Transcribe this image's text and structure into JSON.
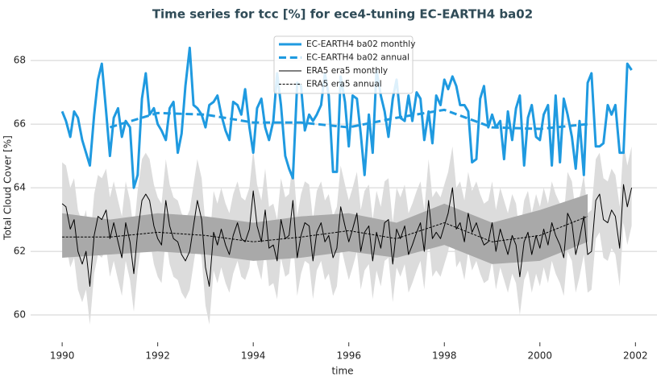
{
  "chart_data": {
    "type": "line",
    "title": "Time series for tcc [%] for ece4-tuning EC-EARTH4 ba02",
    "x_label": "time",
    "y_label": "Total Cloud Cover [%]",
    "xlim": [
      1989.34,
      2002.45
    ],
    "ylim": [
      59.14,
      68.84
    ],
    "xticks": [
      1990,
      1992,
      1994,
      1996,
      1998,
      2000,
      2002
    ],
    "yticks": [
      60,
      62,
      64,
      66,
      68
    ],
    "grid": true,
    "x": [
      1990.0,
      1990.08,
      1990.17,
      1990.25,
      1990.33,
      1990.42,
      1990.5,
      1990.58,
      1990.67,
      1990.75,
      1990.83,
      1990.92,
      1991.0,
      1991.08,
      1991.17,
      1991.25,
      1991.33,
      1991.42,
      1991.5,
      1991.58,
      1991.67,
      1991.75,
      1991.83,
      1991.92,
      1992.0,
      1992.08,
      1992.17,
      1992.25,
      1992.33,
      1992.42,
      1992.5,
      1992.58,
      1992.67,
      1992.75,
      1992.83,
      1992.92,
      1993.0,
      1993.08,
      1993.17,
      1993.25,
      1993.33,
      1993.42,
      1993.5,
      1993.58,
      1993.67,
      1993.75,
      1993.83,
      1993.92,
      1994.0,
      1994.08,
      1994.17,
      1994.25,
      1994.33,
      1994.42,
      1994.5,
      1994.58,
      1994.67,
      1994.75,
      1994.83,
      1994.92,
      1995.0,
      1995.08,
      1995.17,
      1995.25,
      1995.33,
      1995.42,
      1995.5,
      1995.58,
      1995.67,
      1995.75,
      1995.83,
      1995.92,
      1996.0,
      1996.08,
      1996.17,
      1996.25,
      1996.33,
      1996.42,
      1996.5,
      1996.58,
      1996.67,
      1996.75,
      1996.83,
      1996.92,
      1997.0,
      1997.08,
      1997.17,
      1997.25,
      1997.33,
      1997.42,
      1997.5,
      1997.58,
      1997.67,
      1997.75,
      1997.83,
      1997.92,
      1998.0,
      1998.08,
      1998.17,
      1998.25,
      1998.33,
      1998.42,
      1998.5,
      1998.58,
      1998.67,
      1998.75,
      1998.83,
      1998.92,
      1999.0,
      1999.08,
      1999.17,
      1999.25,
      1999.33,
      1999.42,
      1999.5,
      1999.58,
      1999.67,
      1999.75,
      1999.83,
      1999.92,
      2000.0,
      2000.08,
      2000.17,
      2000.25,
      2000.33,
      2000.42,
      2000.5,
      2000.58,
      2000.67,
      2000.75,
      2000.83,
      2000.92,
      2001.0,
      2001.08,
      2001.17,
      2001.25,
      2001.33,
      2001.42,
      2001.5,
      2001.58,
      2001.67,
      2001.75,
      2001.83,
      2001.92
    ],
    "series": [
      {
        "name": "EC-EARTH4 ba02 monthly",
        "color": "#1f9ae0",
        "width": 3,
        "dashed": false,
        "values": [
          66.4,
          66.1,
          65.6,
          66.4,
          66.2,
          65.5,
          65.1,
          64.7,
          66.3,
          67.4,
          67.9,
          66.4,
          65.0,
          66.2,
          66.5,
          65.6,
          66.1,
          65.9,
          64.0,
          64.4,
          66.8,
          67.6,
          66.3,
          66.5,
          66.0,
          65.8,
          65.5,
          66.5,
          66.7,
          65.1,
          65.7,
          67.2,
          68.4,
          66.6,
          66.5,
          66.3,
          65.9,
          66.6,
          66.7,
          66.9,
          66.3,
          65.8,
          65.5,
          66.7,
          66.6,
          66.3,
          67.1,
          65.9,
          65.1,
          66.5,
          66.8,
          65.9,
          65.5,
          66.1,
          67.6,
          66.6,
          65.0,
          64.6,
          64.3,
          67.3,
          67.2,
          65.8,
          66.3,
          66.1,
          66.3,
          66.6,
          67.6,
          66.9,
          64.5,
          64.5,
          67.5,
          66.7,
          65.3,
          66.9,
          66.8,
          65.7,
          64.4,
          66.3,
          65.1,
          67.7,
          66.9,
          66.4,
          65.6,
          66.8,
          67.4,
          66.2,
          66.1,
          66.9,
          66.1,
          67.0,
          66.8,
          65.5,
          66.4,
          65.4,
          66.9,
          66.6,
          67.4,
          67.1,
          67.5,
          67.2,
          66.6,
          66.6,
          66.4,
          64.8,
          64.9,
          66.8,
          67.2,
          65.9,
          66.3,
          65.9,
          66.1,
          64.9,
          66.4,
          65.5,
          66.5,
          66.9,
          64.7,
          66.2,
          66.6,
          65.6,
          65.5,
          66.3,
          66.6,
          64.7,
          66.9,
          64.8,
          66.8,
          66.3,
          65.6,
          64.6,
          66.1,
          64.4,
          67.3,
          67.6,
          65.3,
          65.3,
          65.4,
          66.6,
          66.3,
          66.6,
          65.1,
          65.1,
          67.9,
          67.7
        ]
      },
      {
        "name": "EC-EARTH4 ba02 annual",
        "color": "#1f9ae0",
        "width": 3,
        "dashed": true,
        "x": [
          1991,
          1992,
          1993,
          1994,
          1995,
          1996,
          1997,
          1998,
          1999,
          2000,
          2001
        ],
        "values": [
          65.9,
          66.35,
          66.3,
          66.05,
          66.05,
          65.9,
          66.2,
          66.45,
          65.9,
          65.85,
          66.0
        ]
      },
      {
        "name": "ERA5 era5 monthly",
        "color": "#000000",
        "width": 1,
        "dashed": false,
        "band_color": "#dcdcdc",
        "values": [
          63.5,
          63.4,
          62.7,
          63.0,
          62.0,
          61.6,
          62.0,
          60.9,
          62.5,
          63.1,
          63.0,
          63.3,
          62.4,
          62.9,
          62.3,
          61.8,
          62.9,
          62.3,
          61.3,
          62.6,
          63.6,
          63.8,
          63.6,
          62.8,
          62.4,
          62.2,
          63.6,
          62.8,
          62.4,
          62.3,
          61.9,
          61.7,
          62.0,
          62.8,
          63.6,
          63.0,
          61.5,
          60.9,
          62.6,
          62.2,
          62.7,
          62.2,
          61.9,
          62.5,
          62.9,
          62.4,
          62.3,
          62.7,
          63.9,
          62.8,
          62.3,
          63.3,
          62.1,
          62.2,
          61.7,
          63.0,
          62.4,
          62.5,
          63.6,
          61.8,
          62.5,
          62.9,
          62.8,
          61.7,
          62.6,
          62.9,
          62.3,
          62.5,
          61.8,
          62.1,
          63.4,
          62.8,
          62.3,
          62.7,
          63.2,
          62.0,
          62.6,
          62.8,
          61.7,
          62.6,
          62.1,
          62.9,
          63.0,
          61.6,
          62.7,
          62.4,
          62.8,
          61.9,
          62.2,
          62.6,
          62.9,
          62.0,
          63.6,
          62.4,
          62.6,
          62.4,
          62.8,
          63.2,
          64.0,
          62.7,
          62.9,
          62.3,
          63.2,
          62.6,
          62.9,
          62.5,
          62.2,
          62.3,
          62.9,
          62.0,
          62.7,
          62.3,
          61.9,
          62.5,
          62.2,
          61.2,
          62.3,
          62.6,
          61.9,
          62.5,
          62.1,
          62.7,
          62.2,
          62.9,
          62.5,
          62.2,
          61.8,
          63.2,
          62.9,
          61.9,
          62.4,
          63.1,
          61.9,
          62.0,
          63.6,
          63.8,
          63.0,
          62.9,
          63.3,
          63.1,
          62.1,
          64.1,
          63.4,
          64.0
        ],
        "band_lower": [
          62.3,
          62.2,
          61.5,
          61.8,
          60.8,
          60.4,
          60.8,
          59.7,
          61.3,
          61.9,
          61.8,
          62.1,
          61.2,
          61.7,
          61.1,
          60.6,
          61.7,
          61.1,
          60.1,
          61.4,
          62.4,
          62.6,
          62.4,
          61.6,
          61.2,
          61.0,
          62.4,
          61.6,
          61.2,
          61.1,
          60.7,
          60.5,
          60.8,
          61.6,
          62.4,
          61.8,
          60.3,
          59.7,
          61.4,
          61.0,
          61.5,
          61.0,
          60.7,
          61.3,
          61.7,
          61.2,
          61.1,
          61.5,
          62.7,
          61.6,
          61.1,
          62.1,
          60.9,
          61.0,
          60.5,
          61.8,
          61.2,
          61.3,
          62.4,
          60.6,
          61.3,
          61.7,
          61.6,
          60.5,
          61.4,
          61.7,
          61.1,
          61.3,
          60.6,
          60.9,
          62.2,
          61.6,
          61.1,
          61.5,
          62.0,
          60.8,
          61.4,
          61.6,
          60.5,
          61.4,
          60.9,
          61.7,
          61.8,
          60.4,
          61.5,
          61.2,
          61.6,
          60.7,
          61.0,
          61.4,
          61.7,
          60.8,
          62.4,
          61.2,
          61.4,
          61.2,
          61.6,
          62.0,
          62.8,
          61.5,
          61.7,
          61.1,
          62.0,
          61.4,
          61.7,
          61.3,
          61.0,
          61.1,
          61.7,
          60.8,
          61.5,
          61.1,
          60.7,
          61.3,
          61.0,
          60.0,
          61.1,
          61.4,
          60.7,
          61.3,
          60.9,
          61.5,
          61.0,
          61.7,
          61.3,
          61.0,
          60.6,
          62.0,
          61.7,
          60.7,
          61.2,
          61.9,
          60.7,
          60.8,
          62.4,
          62.6,
          61.8,
          61.7,
          62.1,
          61.9,
          60.9,
          62.9,
          62.2,
          62.8
        ],
        "band_upper": [
          64.8,
          64.7,
          64.0,
          64.3,
          63.3,
          62.9,
          63.3,
          62.2,
          63.8,
          64.4,
          64.3,
          64.6,
          63.7,
          64.2,
          63.6,
          63.1,
          64.2,
          63.6,
          62.6,
          63.9,
          64.9,
          65.1,
          64.9,
          64.1,
          63.7,
          63.5,
          64.9,
          64.1,
          63.7,
          63.6,
          63.2,
          63.0,
          63.3,
          64.1,
          64.9,
          64.3,
          62.8,
          62.2,
          63.9,
          63.5,
          64.0,
          63.5,
          63.2,
          63.8,
          64.2,
          63.7,
          63.6,
          64.0,
          65.2,
          64.1,
          63.6,
          64.6,
          63.4,
          63.5,
          63.0,
          64.3,
          63.7,
          63.8,
          64.9,
          63.1,
          63.8,
          64.2,
          64.1,
          63.0,
          63.9,
          64.2,
          63.6,
          63.8,
          63.1,
          63.4,
          64.7,
          64.1,
          63.6,
          64.0,
          64.5,
          63.3,
          63.9,
          64.1,
          63.0,
          63.9,
          63.4,
          64.2,
          64.3,
          62.9,
          64.0,
          63.7,
          64.1,
          63.2,
          63.5,
          63.9,
          64.2,
          63.3,
          64.9,
          63.7,
          63.9,
          63.7,
          64.1,
          64.5,
          65.3,
          64.0,
          64.2,
          63.6,
          64.5,
          63.9,
          64.2,
          63.8,
          63.5,
          63.6,
          64.2,
          63.3,
          64.0,
          63.6,
          63.2,
          63.8,
          63.5,
          62.5,
          63.6,
          63.9,
          63.2,
          63.8,
          63.4,
          64.0,
          63.5,
          64.2,
          63.8,
          63.5,
          63.1,
          64.5,
          64.2,
          63.2,
          63.7,
          64.4,
          63.2,
          63.3,
          64.9,
          65.1,
          64.3,
          64.2,
          64.6,
          64.4,
          63.4,
          65.4,
          64.7,
          65.3
        ]
      },
      {
        "name": "ERA5 era5 annual",
        "color": "#000000",
        "width": 1,
        "dashed": true,
        "band_color": "#a9a9a9",
        "x": [
          1990,
          1991,
          1992,
          1993,
          1994,
          1995,
          1996,
          1997,
          1998,
          1999,
          2000,
          2001
        ],
        "values": [
          62.45,
          62.45,
          62.6,
          62.5,
          62.3,
          62.45,
          62.65,
          62.4,
          62.9,
          62.3,
          62.5,
          63.1
        ],
        "band_lower": [
          61.8,
          61.9,
          62.0,
          61.9,
          61.7,
          61.8,
          62.0,
          61.8,
          62.2,
          61.6,
          61.7,
          62.3
        ],
        "band_upper": [
          63.2,
          63.0,
          63.2,
          63.1,
          62.9,
          63.1,
          63.2,
          62.9,
          63.5,
          62.9,
          63.3,
          63.8
        ]
      }
    ]
  }
}
